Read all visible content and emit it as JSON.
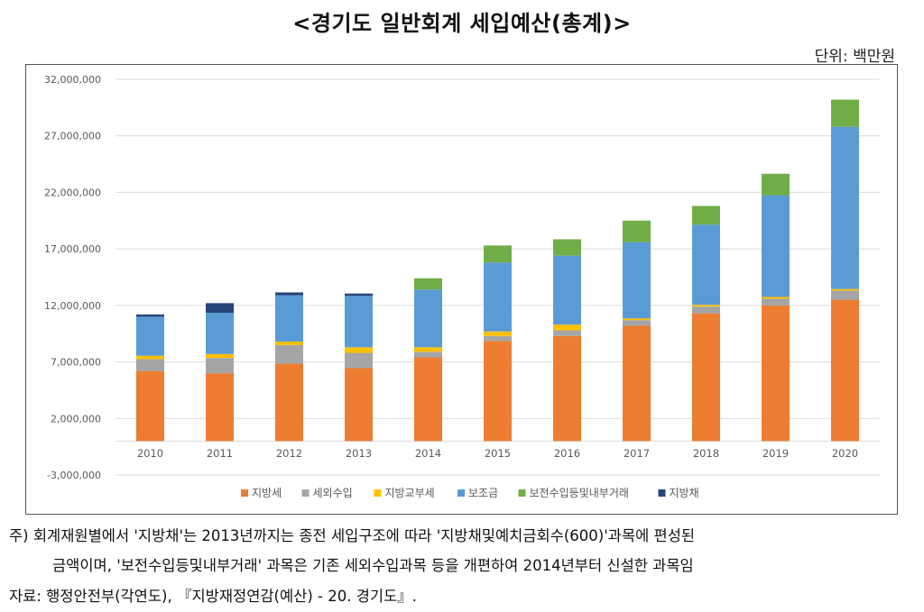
{
  "page": {
    "title": "<경기도 일반회계 세입예산(총계)>",
    "unit": "단위: 백만원",
    "notes": [
      "주) 회계재원별에서 '지방채'는 2013년까지는 종전 세입구조에 따라 '지방채및예치금회수(600)'과목에 편성된",
      "금액이며, '보전수입등및내부거래' 과목은 기존 세외수입과목 등을 개편하여 2014년부터 신설한 과목임",
      "자료: 행정안전부(각연도), 『지방재정연감(예산) - 20. 경기도』."
    ]
  },
  "chart_data": {
    "type": "bar",
    "stacked": true,
    "title": "<경기도 일반회계 세입예산(총계)>",
    "unit": "백만원",
    "xlabel": "",
    "ylabel": "",
    "ylim": [
      -3000000,
      32000000
    ],
    "yticks": [
      32000000,
      27000000,
      22000000,
      17000000,
      12000000,
      7000000,
      2000000,
      -3000000
    ],
    "ytick_labels": [
      "32,000,000",
      "27,000,000",
      "22,000,000",
      "17,000,000",
      "12,000,000",
      "7,000,000",
      "2,000,000",
      "-3,000,000"
    ],
    "grid": true,
    "legend_position": "bottom",
    "categories": [
      "2010",
      "2011",
      "2012",
      "2013",
      "2014",
      "2015",
      "2016",
      "2017",
      "2018",
      "2019",
      "2020"
    ],
    "series": [
      {
        "name": "지방세",
        "color": "#ED7D31",
        "values": [
          6200000,
          6000000,
          6850000,
          6450000,
          7400000,
          8850000,
          9300000,
          10200000,
          11300000,
          12000000,
          12500000
        ]
      },
      {
        "name": "세외수입",
        "color": "#A5A5A5",
        "values": [
          1050000,
          1350000,
          1650000,
          1350000,
          500000,
          450000,
          500000,
          500000,
          600000,
          600000,
          800000
        ]
      },
      {
        "name": "지방교부세",
        "color": "#FFC000",
        "values": [
          300000,
          350000,
          300000,
          500000,
          400000,
          400000,
          500000,
          150000,
          150000,
          150000,
          150000
        ]
      },
      {
        "name": "보조금",
        "color": "#5B9BD5",
        "values": [
          3450000,
          3650000,
          4100000,
          4550000,
          5100000,
          6100000,
          6100000,
          6750000,
          7100000,
          9000000,
          14350000
        ]
      },
      {
        "name": "보전수입등및내부거래",
        "color": "#70AD47",
        "values": [
          0,
          0,
          0,
          0,
          1000000,
          1500000,
          1450000,
          1900000,
          1650000,
          1900000,
          2400000
        ]
      },
      {
        "name": "지방채",
        "color": "#264478",
        "values": [
          200000,
          850000,
          250000,
          200000,
          0,
          0,
          0,
          0,
          0,
          0,
          0
        ]
      }
    ]
  }
}
